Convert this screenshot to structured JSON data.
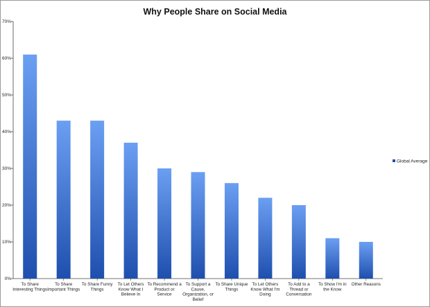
{
  "chart_data": {
    "type": "bar",
    "title": "Why People Share on Social Media",
    "categories": [
      [
        "To Share",
        "Interesting Things"
      ],
      [
        "To Share",
        "Important Things"
      ],
      [
        "To Share Funny",
        "Things"
      ],
      [
        "To Let Others",
        "Know What I",
        "Believe In"
      ],
      [
        "To Recommend a",
        "Product or",
        "Service"
      ],
      [
        "To Support a",
        "Cause,",
        "Organization, or",
        "Belief"
      ],
      [
        "To Share Unique",
        "Things"
      ],
      [
        "To Let Others",
        "Know What I'm",
        "Doing"
      ],
      [
        "To Add to a",
        "Thread or",
        "Conversation"
      ],
      [
        "To Show I'm in",
        "the Know"
      ],
      [
        "Other Reasons"
      ]
    ],
    "series": [
      {
        "name": "Global Average",
        "values": [
          61,
          43,
          43,
          37,
          30,
          29,
          26,
          22,
          20,
          11,
          10
        ]
      }
    ],
    "yticks": [
      "0%",
      "10%",
      "20%",
      "30%",
      "40%",
      "50%",
      "60%",
      "70%"
    ],
    "ylim": [
      0,
      70
    ],
    "legend_position": "right",
    "colors": {
      "bar_top": "#6b9ff2",
      "bar_bottom": "#1f4fae",
      "axis": "#444444"
    }
  }
}
